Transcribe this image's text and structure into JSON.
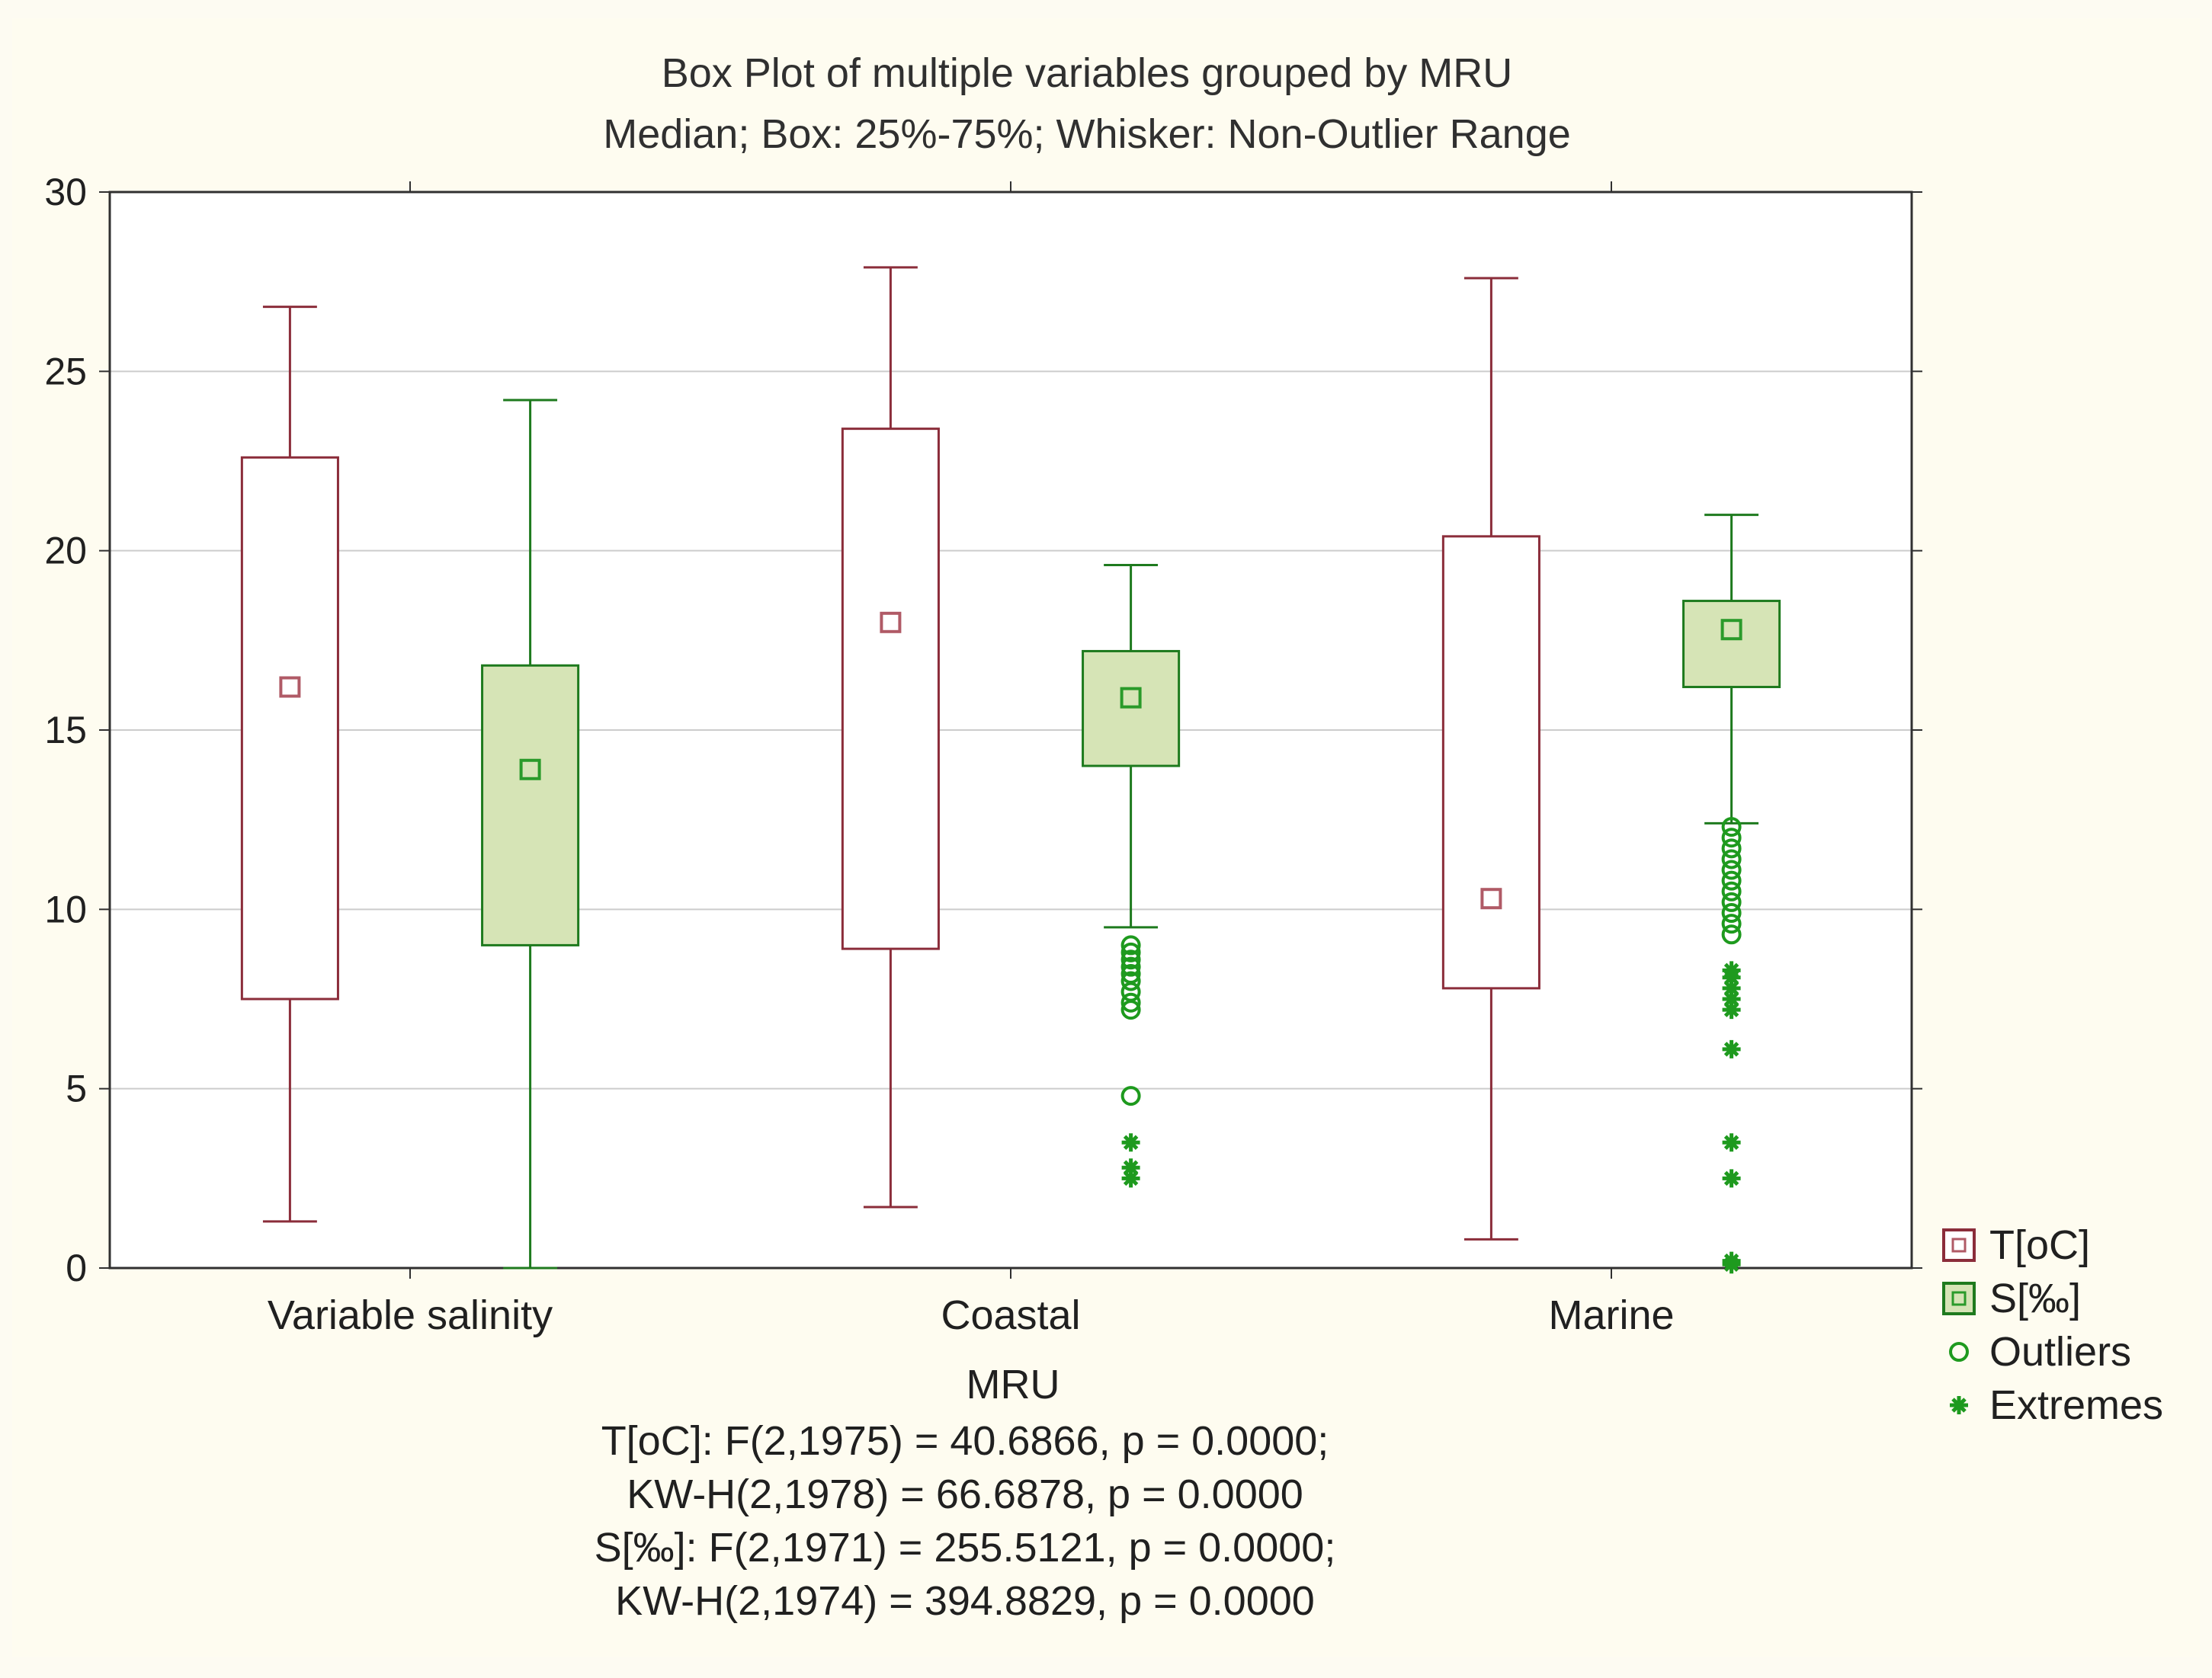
{
  "chart_data": {
    "type": "box",
    "title": "Box Plot of multiple variables grouped by  MRU",
    "subtitle": "Median; Box: 25%-75%; Whisker: Non-Outlier Range",
    "xlabel": "MRU",
    "ylabel": "",
    "ylim": [
      0,
      30
    ],
    "yticks": [
      "0",
      "5",
      "10",
      "15",
      "20",
      "25",
      "30"
    ],
    "categories": [
      "Variable salinity",
      "Coastal",
      "Marine"
    ],
    "colors": {
      "T": "#8b2d3a",
      "S": "#1e7a1e",
      "S_fill": "#d6e4b6",
      "T_fill": "#ffffff",
      "outlier": "#1e9a1e"
    },
    "series": [
      {
        "name": "T[oC]",
        "key": "T",
        "boxes": [
          {
            "category": "Variable salinity",
            "min": 1.3,
            "q1": 7.5,
            "median": 16.2,
            "q3": 22.6,
            "max": 26.8,
            "outliers": [],
            "extremes": []
          },
          {
            "category": "Coastal",
            "min": 1.7,
            "q1": 8.9,
            "median": 18.0,
            "q3": 23.4,
            "max": 27.9,
            "outliers": [],
            "extremes": []
          },
          {
            "category": "Marine",
            "min": 0.8,
            "q1": 7.8,
            "median": 10.3,
            "q3": 20.4,
            "max": 27.6,
            "outliers": [],
            "extremes": []
          }
        ]
      },
      {
        "name": "S[‰]",
        "key": "S",
        "boxes": [
          {
            "category": "Variable salinity",
            "min": 0.0,
            "q1": 9.0,
            "median": 13.9,
            "q3": 16.8,
            "max": 24.2,
            "outliers": [],
            "extremes": []
          },
          {
            "category": "Coastal",
            "min": 9.5,
            "q1": 14.0,
            "median": 15.9,
            "q3": 17.2,
            "max": 19.6,
            "outliers": [
              9.0,
              8.8,
              8.6,
              8.4,
              8.2,
              8.0,
              7.7,
              7.4,
              7.2,
              4.8
            ],
            "extremes": [
              3.5,
              2.8,
              2.5
            ]
          },
          {
            "category": "Marine",
            "min": 12.4,
            "q1": 16.2,
            "median": 17.8,
            "q3": 18.6,
            "max": 21.0,
            "outliers": [
              12.3,
              12.0,
              11.7,
              11.4,
              11.1,
              10.8,
              10.5,
              10.2,
              9.9,
              9.6,
              9.3
            ],
            "extremes": [
              8.3,
              8.1,
              7.8,
              7.5,
              7.2,
              6.1,
              3.5,
              2.5,
              0.2,
              0.1
            ]
          }
        ]
      }
    ],
    "legend": [
      {
        "label": "T[oC]",
        "kind": "box-T"
      },
      {
        "label": "S[‰]",
        "kind": "box-S"
      },
      {
        "label": "Outliers",
        "kind": "outlier"
      },
      {
        "label": "Extremes",
        "kind": "extreme"
      }
    ],
    "stats": [
      "T[oC]:   F(2,1975) = 40.6866, p = 0.0000;",
      "KW-H(2,1978) = 66.6878, p = 0.0000",
      "S[‰]:   F(2,1971) = 255.5121, p = 0.0000;",
      "KW-H(2,1974) = 394.8829, p = 0.0000"
    ]
  }
}
